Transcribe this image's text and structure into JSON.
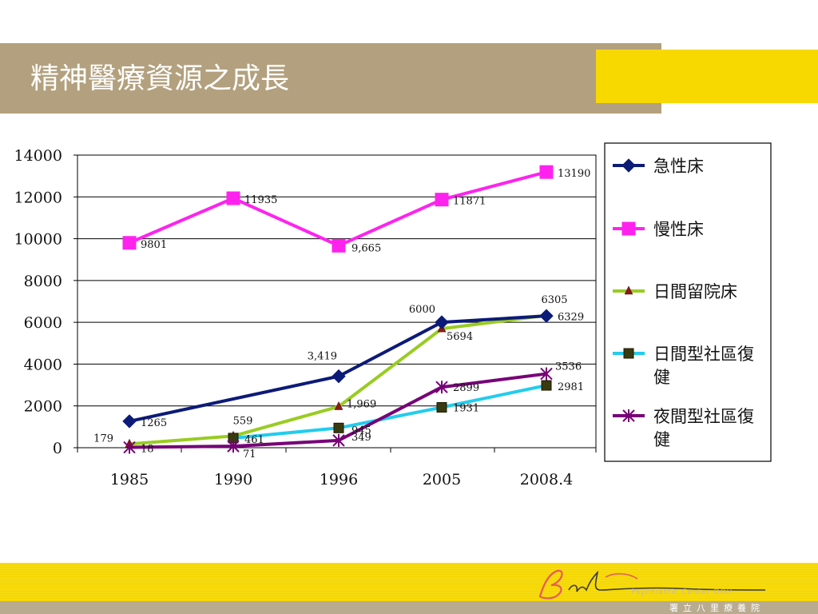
{
  "slide": {
    "title": "精神醫療資源之成長",
    "logo": {
      "script": "Bali",
      "english": "Psychiatric Center DOH",
      "chinese": "署立八里療養院"
    }
  },
  "colors": {
    "title_bar": "#b3a07e",
    "accent_yellow": "#f7d900",
    "footer_gray": "#b8ab90"
  },
  "chart_data": {
    "type": "line",
    "categories": [
      "1985",
      "1990",
      "1996",
      "2005",
      "2008.4"
    ],
    "ylim": [
      0,
      14000
    ],
    "yticks": [
      "0",
      "2000",
      "4000",
      "6000",
      "8000",
      "10000",
      "12000",
      "14000"
    ],
    "grid": true,
    "legend_position": "right",
    "series": [
      {
        "name": "急性床",
        "color": "#0c1a78",
        "marker": "diamond",
        "values": [
          1265,
          null,
          3419,
          6000,
          6305
        ],
        "labels": [
          "1265",
          "",
          "3,419",
          "6000",
          "6305"
        ]
      },
      {
        "name": "慢性床",
        "color": "#ff22ee",
        "marker": "square",
        "values": [
          9801,
          11935,
          9665,
          11871,
          13190
        ],
        "labels": [
          "9801",
          "11935",
          "9,665",
          "11871",
          "13190"
        ]
      },
      {
        "name": "日間留院床",
        "color": "#99cc22",
        "marker": "triangle",
        "values": [
          179,
          559,
          1969,
          5694,
          6329
        ],
        "labels": [
          "179",
          "559",
          "1,969",
          "5694",
          "6329"
        ]
      },
      {
        "name": "日間型社區復健",
        "color": "#22ccee",
        "marker": "square-dark",
        "values": [
          null,
          461,
          945,
          1931,
          2981
        ],
        "labels": [
          "",
          "461",
          "945",
          "1931",
          "2981"
        ]
      },
      {
        "name": "夜間型社區復健",
        "color": "#770077",
        "marker": "star",
        "values": [
          18,
          71,
          349,
          2899,
          3536
        ],
        "labels": [
          "18",
          "71",
          "349",
          "2899",
          "3536"
        ]
      }
    ]
  }
}
